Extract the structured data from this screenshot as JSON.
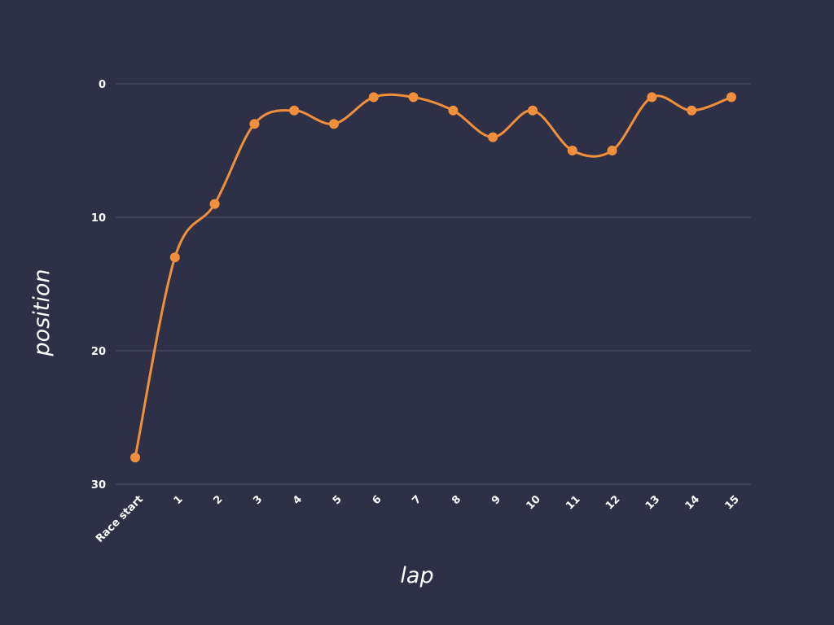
{
  "chart_data": {
    "type": "line",
    "title": "",
    "xlabel": "lap",
    "ylabel": "position",
    "categories": [
      "Race start",
      "1",
      "2",
      "3",
      "4",
      "5",
      "6",
      "7",
      "8",
      "9",
      "10",
      "11",
      "12",
      "13",
      "14",
      "15"
    ],
    "series": [
      {
        "values": [
          28,
          13,
          9,
          3,
          2,
          3,
          1,
          1,
          2,
          4,
          2,
          5,
          5,
          1,
          2,
          1
        ]
      }
    ],
    "yticks": [
      0,
      10,
      20,
      30
    ],
    "ylim": [
      0,
      30
    ],
    "y_inverted": true,
    "grid": true,
    "smooth": true,
    "colors": {
      "background": "#2e3047",
      "line": "#f28f3b",
      "grid": "#4f5268",
      "text": "#ffffff"
    }
  }
}
